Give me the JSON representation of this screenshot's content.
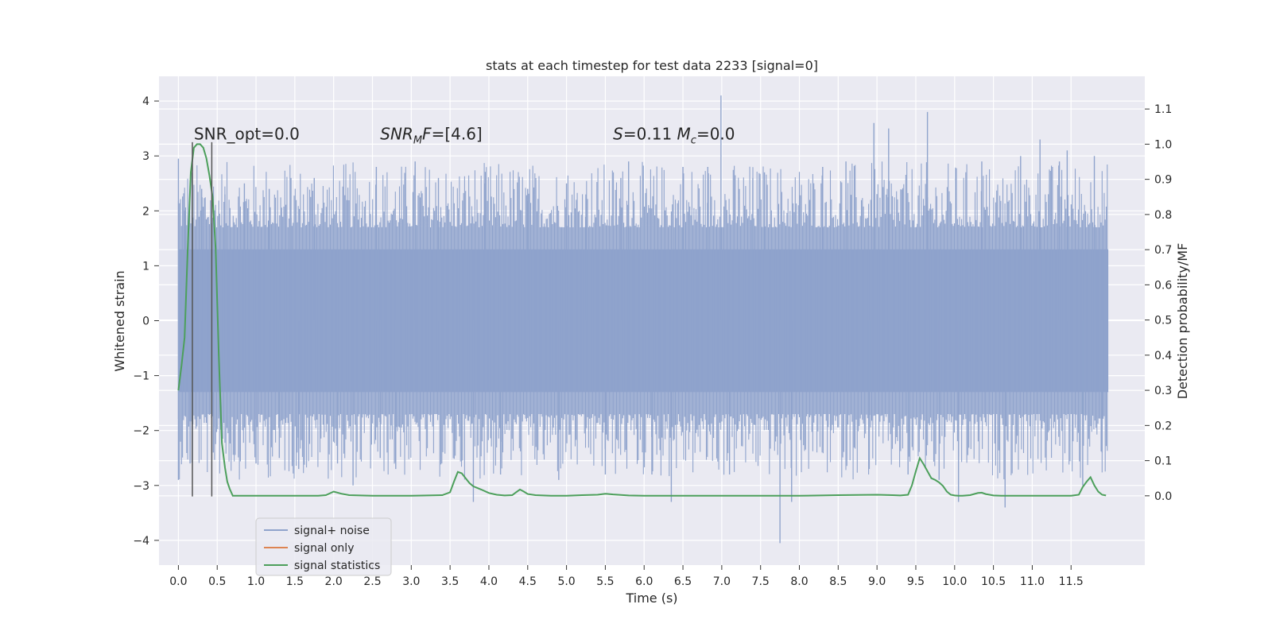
{
  "chart_data": {
    "type": "line",
    "title": "stats at each timestep for test data 2233 [signal=0]",
    "xlabel": "Time (s)",
    "ylabel": "Whitened strain",
    "ylabel_right": "Detection probability/MF",
    "xlim": [
      -0.25,
      12.45
    ],
    "ylim": [
      -4.45,
      4.45
    ],
    "ylim_right": [
      -0.197,
      1.193
    ],
    "x_ticks": [
      0.0,
      0.5,
      1.0,
      1.5,
      2.0,
      2.5,
      3.0,
      3.5,
      4.0,
      4.5,
      5.0,
      5.5,
      6.0,
      6.5,
      7.0,
      7.5,
      8.0,
      8.5,
      9.0,
      9.5,
      10.0,
      10.5,
      11.0,
      11.5
    ],
    "x_tick_labels": [
      "0.0",
      "0.5",
      "1.0",
      "1.5",
      "2.0",
      "2.5",
      "3.0",
      "3.5",
      "4.0",
      "4.5",
      "5.0",
      "5.5",
      "6.0",
      "6.5",
      "7.0",
      "7.5",
      "8.0",
      "8.5",
      "9.0",
      "9.5",
      "10.0",
      "10.5",
      "11.0",
      "11.5"
    ],
    "y_ticks": [
      -4,
      -3,
      -2,
      -1,
      0,
      1,
      2,
      3,
      4
    ],
    "y_tick_labels": [
      "−4",
      "−3",
      "−2",
      "−1",
      "0",
      "1",
      "2",
      "3",
      "4"
    ],
    "y_right_ticks": [
      0.0,
      0.1,
      0.2,
      0.3,
      0.4,
      0.5,
      0.6,
      0.7,
      0.8,
      0.9,
      1.0,
      1.1
    ],
    "y_right_tick_labels": [
      "0.0",
      "0.1",
      "0.2",
      "0.3",
      "0.4",
      "0.5",
      "0.6",
      "0.7",
      "0.8",
      "0.9",
      "1.0",
      "1.1"
    ],
    "grid": true,
    "legend_position": "lower-left",
    "annotations": [
      {
        "text": "SNR_opt=0.0",
        "x": 0.2,
        "y": 3.3
      },
      {
        "text": "SNR_MF=[4.6]",
        "x": 2.6,
        "y": 3.3
      },
      {
        "text": "S=0.11   M_c=0.0",
        "x": 5.6,
        "y": 3.3
      }
    ],
    "markers": {
      "x": [
        0.18,
        0.43
      ],
      "y_top": 3.25,
      "y_bottom": -3.2,
      "color": "#555555"
    },
    "series": [
      {
        "name": "signal+ noise",
        "axis": "left",
        "color": "#8fa3cc",
        "kind": "noise-band",
        "x_range": [
          0.0,
          11.98
        ],
        "band_pct": 1.3,
        "spikes": [
          {
            "x": 0.0,
            "y": 2.95
          },
          {
            "x": 0.0,
            "y": -2.9
          },
          {
            "x": 0.08,
            "y": 2.0
          },
          {
            "x": 0.15,
            "y": -2.6
          },
          {
            "x": 0.3,
            "y": 2.4
          },
          {
            "x": 0.45,
            "y": -2.4
          },
          {
            "x": 0.6,
            "y": 2.3
          },
          {
            "x": 0.85,
            "y": 2.5
          },
          {
            "x": 1.0,
            "y": -2.6
          },
          {
            "x": 1.17,
            "y": 2.4
          },
          {
            "x": 1.3,
            "y": -2.5
          },
          {
            "x": 1.45,
            "y": 2.6
          },
          {
            "x": 1.55,
            "y": -2.7
          },
          {
            "x": 1.75,
            "y": 2.6
          },
          {
            "x": 2.05,
            "y": -2.6
          },
          {
            "x": 2.25,
            "y": -3.0
          },
          {
            "x": 2.55,
            "y": 2.8
          },
          {
            "x": 2.6,
            "y": -2.5
          },
          {
            "x": 2.8,
            "y": -2.7
          },
          {
            "x": 3.05,
            "y": 2.9
          },
          {
            "x": 3.35,
            "y": 2.6
          },
          {
            "x": 3.8,
            "y": -3.3
          },
          {
            "x": 3.95,
            "y": 2.5
          },
          {
            "x": 4.15,
            "y": -2.8
          },
          {
            "x": 4.5,
            "y": 2.4
          },
          {
            "x": 4.9,
            "y": -2.9
          },
          {
            "x": 5.0,
            "y": 2.5
          },
          {
            "x": 5.25,
            "y": 2.3
          },
          {
            "x": 5.5,
            "y": -2.8
          },
          {
            "x": 5.7,
            "y": 2.6
          },
          {
            "x": 5.8,
            "y": 2.9
          },
          {
            "x": 6.1,
            "y": -2.8
          },
          {
            "x": 6.35,
            "y": -3.3
          },
          {
            "x": 6.5,
            "y": 2.8
          },
          {
            "x": 6.82,
            "y": 2.8
          },
          {
            "x": 6.99,
            "y": 4.1
          },
          {
            "x": 7.1,
            "y": -2.8
          },
          {
            "x": 7.4,
            "y": 2.6
          },
          {
            "x": 7.55,
            "y": 2.7
          },
          {
            "x": 7.75,
            "y": -4.05
          },
          {
            "x": 7.9,
            "y": -3.3
          },
          {
            "x": 8.3,
            "y": 2.8
          },
          {
            "x": 8.6,
            "y": 2.9
          },
          {
            "x": 8.9,
            "y": -2.7
          },
          {
            "x": 8.96,
            "y": 3.6
          },
          {
            "x": 9.15,
            "y": 3.5
          },
          {
            "x": 9.4,
            "y": -2.8
          },
          {
            "x": 9.65,
            "y": 3.8
          },
          {
            "x": 9.8,
            "y": -2.9
          },
          {
            "x": 10.05,
            "y": -3.3
          },
          {
            "x": 10.35,
            "y": 2.9
          },
          {
            "x": 10.65,
            "y": -3.4
          },
          {
            "x": 10.85,
            "y": 3.0
          },
          {
            "x": 11.1,
            "y": 3.3
          },
          {
            "x": 11.35,
            "y": 2.9
          },
          {
            "x": 11.45,
            "y": 3.1
          },
          {
            "x": 11.65,
            "y": -3.0
          },
          {
            "x": 11.8,
            "y": 3.0
          },
          {
            "x": 11.9,
            "y": -2.4
          }
        ]
      },
      {
        "name": "signal only",
        "axis": "left",
        "color": "#dd8452",
        "x": [
          0.0,
          11.98
        ],
        "y": [
          0.0,
          0.0
        ]
      },
      {
        "name": "signal statistics",
        "axis": "right",
        "color": "#4c9f5b",
        "x": [
          0.0,
          0.04,
          0.08,
          0.12,
          0.16,
          0.2,
          0.24,
          0.28,
          0.32,
          0.36,
          0.4,
          0.44,
          0.48,
          0.52,
          0.56,
          0.6,
          0.63,
          0.66,
          0.7,
          0.8,
          1.0,
          1.5,
          1.8,
          1.9,
          2.0,
          2.1,
          2.2,
          2.5,
          3.0,
          3.4,
          3.5,
          3.55,
          3.6,
          3.65,
          3.7,
          3.75,
          3.8,
          3.9,
          4.0,
          4.1,
          4.2,
          4.3,
          4.35,
          4.4,
          4.45,
          4.5,
          4.6,
          4.7,
          4.8,
          5.0,
          5.2,
          5.4,
          5.5,
          5.6,
          5.8,
          6.0,
          6.2,
          6.4,
          6.6,
          7.0,
          8.0,
          8.5,
          9.0,
          9.2,
          9.3,
          9.4,
          9.45,
          9.5,
          9.55,
          9.6,
          9.65,
          9.7,
          9.75,
          9.8,
          9.85,
          9.9,
          9.95,
          10.0,
          10.05,
          10.1,
          10.2,
          10.3,
          10.35,
          10.4,
          10.5,
          10.6,
          11.0,
          11.3,
          11.5,
          11.6,
          11.65,
          11.7,
          11.75,
          11.8,
          11.85,
          11.9,
          11.95
        ],
        "y": [
          0.3,
          0.37,
          0.45,
          0.7,
          0.92,
          0.99,
          1.0,
          1.0,
          0.99,
          0.96,
          0.91,
          0.85,
          0.7,
          0.4,
          0.15,
          0.08,
          0.04,
          0.02,
          0.0,
          0.0,
          0.0,
          0.0,
          0.0,
          0.002,
          0.012,
          0.006,
          0.002,
          0.0,
          0.0,
          0.002,
          0.01,
          0.04,
          0.068,
          0.064,
          0.05,
          0.036,
          0.027,
          0.018,
          0.008,
          0.003,
          0.001,
          0.002,
          0.01,
          0.018,
          0.012,
          0.005,
          0.002,
          0.001,
          0.0,
          0.0,
          0.002,
          0.003,
          0.006,
          0.004,
          0.001,
          0.0,
          0.0,
          0.0,
          0.0,
          0.0,
          0.0,
          0.002,
          0.003,
          0.002,
          0.001,
          0.003,
          0.03,
          0.07,
          0.107,
          0.09,
          0.07,
          0.05,
          0.045,
          0.038,
          0.028,
          0.012,
          0.003,
          0.001,
          0.0,
          0.0,
          0.002,
          0.008,
          0.009,
          0.005,
          0.001,
          0.0,
          0.0,
          0.0,
          0.0,
          0.003,
          0.025,
          0.04,
          0.053,
          0.03,
          0.012,
          0.003,
          0.001
        ]
      }
    ]
  }
}
